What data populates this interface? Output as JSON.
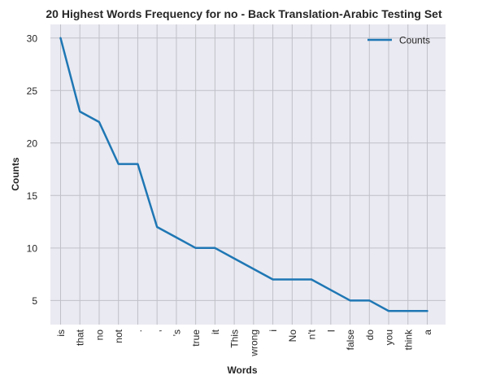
{
  "chart_data": {
    "type": "line",
    "title": "20 Highest Words Frequency for no - Back Translation-Arabic Testing Set",
    "xlabel": "Words",
    "ylabel": "Counts",
    "categories": [
      "is",
      "that",
      "no",
      "not",
      ".",
      ",",
      "'s",
      "true",
      "it",
      "This",
      "wrong",
      "i",
      "No",
      "n't",
      "I",
      "false",
      "do",
      "you",
      "think",
      "a"
    ],
    "series": [
      {
        "name": "Counts",
        "values": [
          30,
          23,
          22,
          18,
          18,
          12,
          11,
          10,
          10,
          9,
          8,
          7,
          7,
          7,
          6,
          5,
          5,
          4,
          4,
          4
        ],
        "color": "#1f77b4"
      }
    ],
    "yticks": [
      5,
      10,
      15,
      20,
      25,
      30
    ],
    "ylim": [
      2.7,
      31.3
    ],
    "grid": true,
    "legend_position": "top-right",
    "background_color": "#eaeaf2",
    "grid_color": "#c0c0c8"
  }
}
